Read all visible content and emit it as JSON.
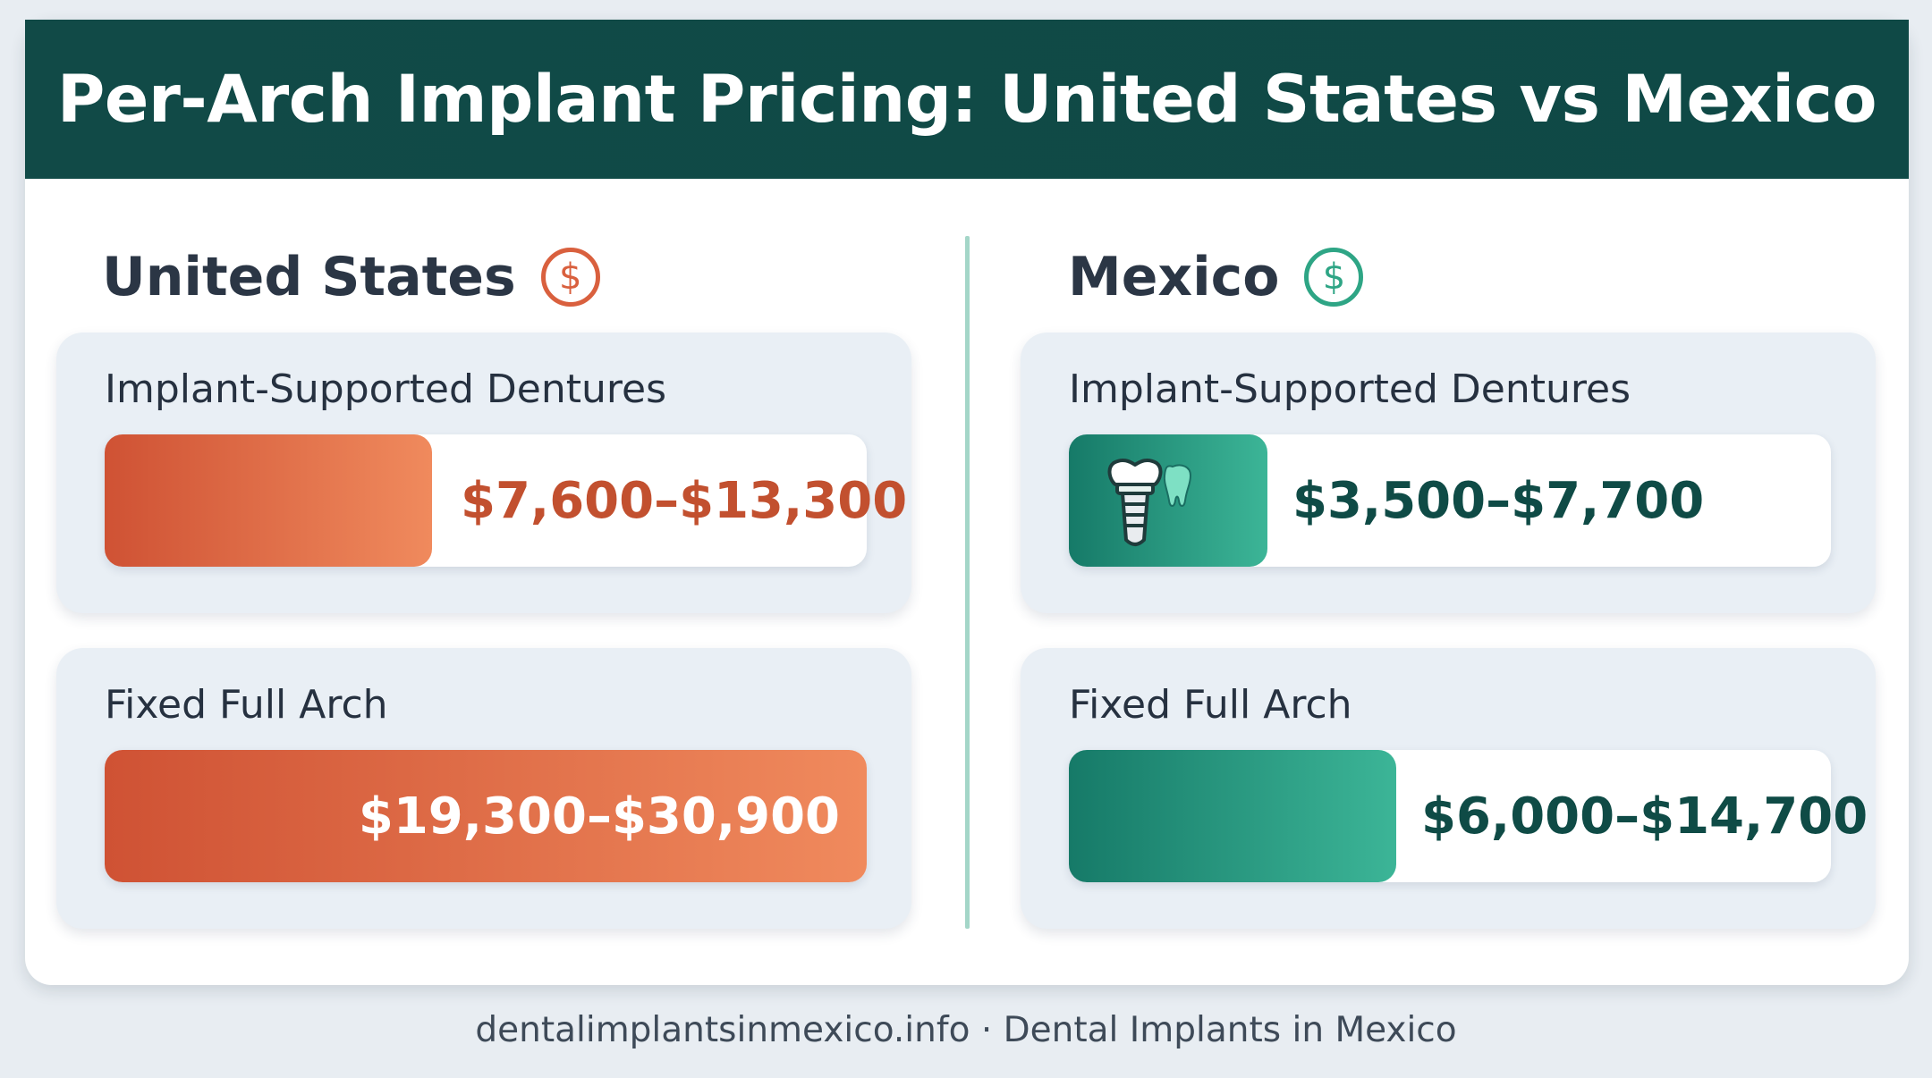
{
  "title": "Per-Arch Implant Pricing: United States vs Mexico",
  "footer": "dentalimplantsinmexico.info · Dental Implants in Mexico",
  "colors": {
    "header": "#114a47",
    "us_accent": "#d9603e",
    "mexico_accent": "#2ea585",
    "divider": "#a4d6c8"
  },
  "icons": {
    "us_title_icon": "dollar-circle-icon",
    "mexico_title_icon": "dollar-circle-icon",
    "mexico_dentures_icon": "dental-implant-icon"
  },
  "chart_data": {
    "type": "bar",
    "columns": [
      {
        "name": "United States",
        "bars": [
          {
            "label": "Implant-Supported Dentures",
            "display": "$7,600–$13,300",
            "min": 7600,
            "max": 13300,
            "fill": 0.43
          },
          {
            "label": "Fixed Full Arch",
            "display": "$19,300–$30,900",
            "min": 19300,
            "max": 30900,
            "fill": 1.0
          }
        ]
      },
      {
        "name": "Mexico",
        "bars": [
          {
            "label": "Implant-Supported Dentures",
            "display": "$3,500–$7,700",
            "min": 3500,
            "max": 7700,
            "fill": 0.26
          },
          {
            "label": "Fixed Full Arch",
            "display": "$6,000–$14,700",
            "min": 6000,
            "max": 14700,
            "fill": 0.43
          }
        ]
      }
    ]
  }
}
